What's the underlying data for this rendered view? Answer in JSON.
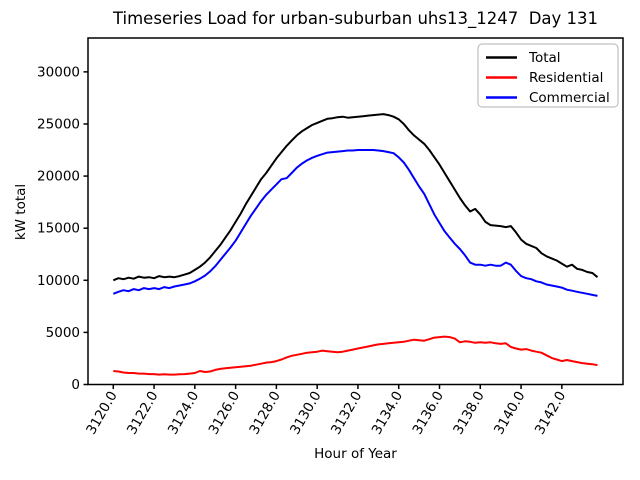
{
  "chart_data": {
    "type": "line",
    "title": "Timeseries Load for urban-suburban uhs13_1247  Day 131",
    "xlabel": "Hour of Year",
    "ylabel": "kW total",
    "grid": false,
    "legend_position": "upper right",
    "xlim": [
      3118.76,
      3145.0
    ],
    "ylim": [
      0,
      33250
    ],
    "xticks": {
      "values": [
        3120,
        3122,
        3124,
        3126,
        3128,
        3130,
        3132,
        3134,
        3136,
        3138,
        3140,
        3142
      ],
      "labels": [
        "3120.0",
        "3122.0",
        "3124.0",
        "3126.0",
        "3128.0",
        "3130.0",
        "3132.0",
        "3134.0",
        "3136.0",
        "3138.0",
        "3140.0",
        "3142.0"
      ]
    },
    "yticks": {
      "values": [
        0,
        5000,
        10000,
        15000,
        20000,
        25000,
        30000
      ],
      "labels": [
        "0",
        "5000",
        "10000",
        "15000",
        "20000",
        "25000",
        "30000"
      ]
    },
    "x": [
      3120.0,
      3120.25,
      3120.5,
      3120.75,
      3121.0,
      3121.25,
      3121.5,
      3121.75,
      3122.0,
      3122.25,
      3122.5,
      3122.75,
      3123.0,
      3123.25,
      3123.5,
      3123.75,
      3124.0,
      3124.25,
      3124.5,
      3124.75,
      3125.0,
      3125.25,
      3125.5,
      3125.75,
      3126.0,
      3126.25,
      3126.5,
      3126.75,
      3127.0,
      3127.25,
      3127.5,
      3127.75,
      3128.0,
      3128.25,
      3128.5,
      3128.75,
      3129.0,
      3129.25,
      3129.5,
      3129.75,
      3130.0,
      3130.25,
      3130.5,
      3130.75,
      3131.0,
      3131.25,
      3131.5,
      3131.75,
      3132.0,
      3132.25,
      3132.5,
      3132.75,
      3133.0,
      3133.25,
      3133.5,
      3133.75,
      3134.0,
      3134.25,
      3134.5,
      3134.75,
      3135.0,
      3135.25,
      3135.5,
      3135.75,
      3136.0,
      3136.25,
      3136.5,
      3136.75,
      3137.0,
      3137.25,
      3137.5,
      3137.75,
      3138.0,
      3138.25,
      3138.5,
      3138.75,
      3139.0,
      3139.25,
      3139.5,
      3139.75,
      3140.0,
      3140.25,
      3140.5,
      3140.75,
      3141.0,
      3141.25,
      3141.5,
      3141.75,
      3142.0,
      3142.25,
      3142.5,
      3142.75,
      3143.0,
      3143.25,
      3143.5,
      3143.75
    ],
    "series": [
      {
        "name": "Total",
        "color": "#000000",
        "values": [
          10000,
          10200,
          10100,
          10250,
          10150,
          10350,
          10250,
          10300,
          10200,
          10400,
          10300,
          10350,
          10300,
          10400,
          10550,
          10700,
          11000,
          11300,
          11700,
          12200,
          12800,
          13400,
          14100,
          14800,
          15600,
          16400,
          17300,
          18100,
          18900,
          19700,
          20300,
          21000,
          21700,
          22300,
          22900,
          23400,
          23900,
          24300,
          24600,
          24900,
          25100,
          25300,
          25500,
          25550,
          25650,
          25700,
          25600,
          25650,
          25700,
          25750,
          25800,
          25850,
          25900,
          25950,
          25850,
          25700,
          25450,
          25000,
          24400,
          23900,
          23500,
          23100,
          22500,
          21800,
          21100,
          20300,
          19500,
          18700,
          17900,
          17200,
          16600,
          16850,
          16300,
          15600,
          15300,
          15250,
          15200,
          15100,
          15200,
          14600,
          13900,
          13500,
          13300,
          13100,
          12600,
          12300,
          12100,
          11900,
          11600,
          11300,
          11500,
          11100,
          11000,
          10800,
          10700,
          10300
        ]
      },
      {
        "name": "Residential",
        "color": "#ff0000",
        "values": [
          1300,
          1250,
          1150,
          1100,
          1100,
          1050,
          1050,
          1000,
          1000,
          950,
          975,
          950,
          950,
          975,
          1000,
          1050,
          1100,
          1300,
          1200,
          1250,
          1400,
          1500,
          1550,
          1600,
          1650,
          1700,
          1750,
          1800,
          1900,
          2000,
          2100,
          2150,
          2250,
          2400,
          2600,
          2750,
          2850,
          2950,
          3050,
          3100,
          3150,
          3250,
          3200,
          3150,
          3100,
          3150,
          3250,
          3350,
          3450,
          3550,
          3650,
          3750,
          3850,
          3900,
          3950,
          4000,
          4050,
          4100,
          4200,
          4300,
          4250,
          4200,
          4350,
          4500,
          4550,
          4600,
          4550,
          4400,
          4050,
          4150,
          4100,
          4000,
          4050,
          4000,
          4050,
          3950,
          3900,
          3950,
          3600,
          3450,
          3350,
          3400,
          3250,
          3150,
          3050,
          2800,
          2550,
          2400,
          2250,
          2350,
          2250,
          2150,
          2050,
          2000,
          1950,
          1850
        ]
      },
      {
        "name": "Commercial",
        "color": "#0000ff",
        "values": [
          8700,
          8900,
          9050,
          8950,
          9150,
          9050,
          9250,
          9150,
          9250,
          9150,
          9350,
          9250,
          9400,
          9500,
          9600,
          9700,
          9900,
          10150,
          10450,
          10850,
          11350,
          11950,
          12550,
          13150,
          13800,
          14600,
          15400,
          16200,
          16900,
          17600,
          18200,
          18700,
          19200,
          19700,
          19800,
          20300,
          20800,
          21200,
          21500,
          21750,
          21950,
          22100,
          22250,
          22300,
          22350,
          22400,
          22450,
          22450,
          22500,
          22500,
          22500,
          22500,
          22450,
          22400,
          22300,
          22200,
          21800,
          21300,
          20600,
          19800,
          19000,
          18300,
          17300,
          16300,
          15500,
          14700,
          14100,
          13500,
          13000,
          12400,
          11700,
          11500,
          11500,
          11400,
          11500,
          11400,
          11400,
          11700,
          11500,
          10900,
          10400,
          10200,
          10100,
          9900,
          9800,
          9600,
          9500,
          9400,
          9300,
          9100,
          9000,
          8900,
          8800,
          8700,
          8600,
          8500
        ]
      }
    ]
  }
}
